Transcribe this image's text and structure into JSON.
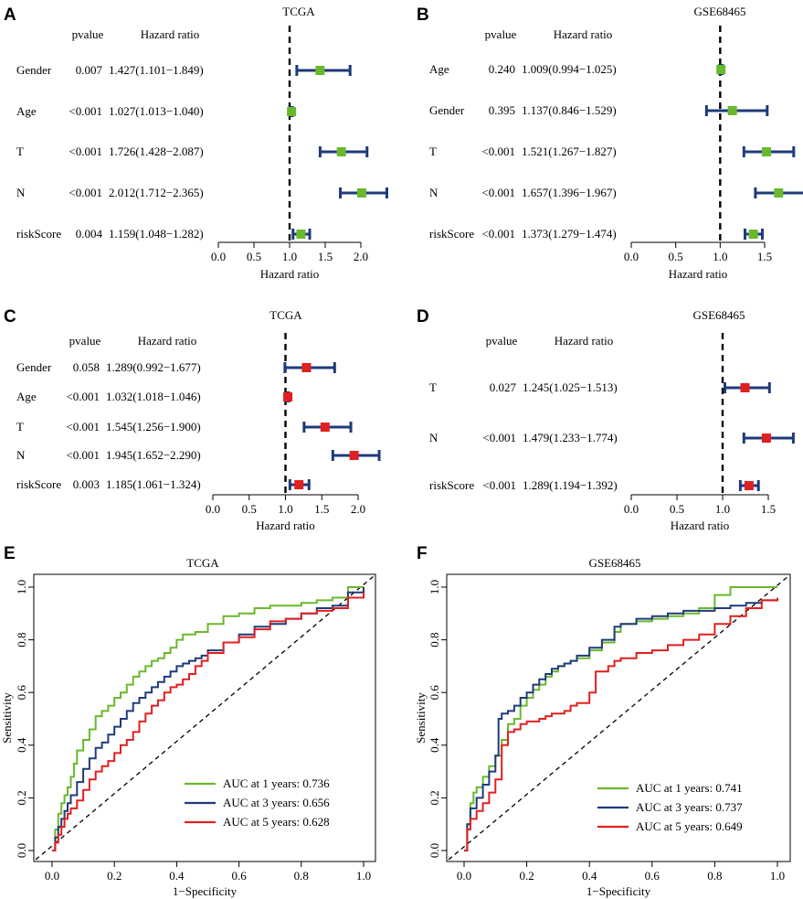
{
  "chart_data": [
    {
      "panel": "A",
      "type": "forest",
      "title": "TCGA",
      "col_pvalue": "pvalue",
      "col_hr": "Hazard ratio",
      "xlabel": "Hazard ratio",
      "xlim": [
        0.0,
        2.0
      ],
      "xticks": [
        "0.0",
        "0.5",
        "1.0",
        "1.5",
        "2.0"
      ],
      "ref_line": 1.0,
      "marker_color": "#6ab82e",
      "ci_color": "#1f3a7a",
      "rows": [
        {
          "label": "Gender",
          "pvalue": "0.007",
          "hr_text": "1.427(1.101−1.849)",
          "hr": 1.427,
          "lo": 1.101,
          "hi": 1.849
        },
        {
          "label": "Age",
          "pvalue": "<0.001",
          "hr_text": "1.027(1.013−1.040)",
          "hr": 1.027,
          "lo": 1.013,
          "hi": 1.04
        },
        {
          "label": "T",
          "pvalue": "<0.001",
          "hr_text": "1.726(1.428−2.087)",
          "hr": 1.726,
          "lo": 1.428,
          "hi": 2.087
        },
        {
          "label": "N",
          "pvalue": "<0.001",
          "hr_text": "2.012(1.712−2.365)",
          "hr": 2.012,
          "lo": 1.712,
          "hi": 2.365
        },
        {
          "label": "riskScore",
          "pvalue": "0.004",
          "hr_text": "1.159(1.048−1.282)",
          "hr": 1.159,
          "lo": 1.048,
          "hi": 1.282
        }
      ]
    },
    {
      "panel": "B",
      "type": "forest",
      "title": "GSE68465",
      "col_pvalue": "pvalue",
      "col_hr": "Hazard ratio",
      "xlabel": "Hazard ratio",
      "xlim": [
        0.0,
        1.5
      ],
      "xticks": [
        "0.0",
        "0.5",
        "1.0",
        "1.5"
      ],
      "ref_line": 1.0,
      "marker_color": "#6ab82e",
      "ci_color": "#1f3a7a",
      "rows": [
        {
          "label": "Age",
          "pvalue": "0.240",
          "hr_text": "1.009(0.994−1.025)",
          "hr": 1.009,
          "lo": 0.994,
          "hi": 1.025
        },
        {
          "label": "Gender",
          "pvalue": "0.395",
          "hr_text": "1.137(0.846−1.529)",
          "hr": 1.137,
          "lo": 0.846,
          "hi": 1.529
        },
        {
          "label": "T",
          "pvalue": "<0.001",
          "hr_text": "1.521(1.267−1.827)",
          "hr": 1.521,
          "lo": 1.267,
          "hi": 1.827
        },
        {
          "label": "N",
          "pvalue": "<0.001",
          "hr_text": "1.657(1.396−1.967)",
          "hr": 1.657,
          "lo": 1.396,
          "hi": 1.967
        },
        {
          "label": "riskScore",
          "pvalue": "<0.001",
          "hr_text": "1.373(1.279−1.474)",
          "hr": 1.373,
          "lo": 1.279,
          "hi": 1.474
        }
      ]
    },
    {
      "panel": "C",
      "type": "forest",
      "title": "TCGA",
      "col_pvalue": "pvalue",
      "col_hr": "Hazard ratio",
      "xlabel": "Hazard ratio",
      "xlim": [
        0.0,
        2.0
      ],
      "xticks": [
        "0.0",
        "0.5",
        "1.0",
        "1.5",
        "2.0"
      ],
      "ref_line": 1.0,
      "marker_color": "#e02020",
      "ci_color": "#1f3a7a",
      "rows": [
        {
          "label": "Gender",
          "pvalue": "0.058",
          "hr_text": "1.289(0.992−1.677)",
          "hr": 1.289,
          "lo": 0.992,
          "hi": 1.677
        },
        {
          "label": "Age",
          "pvalue": "<0.001",
          "hr_text": "1.032(1.018−1.046)",
          "hr": 1.032,
          "lo": 1.018,
          "hi": 1.046
        },
        {
          "label": "T",
          "pvalue": "<0.001",
          "hr_text": "1.545(1.256−1.900)",
          "hr": 1.545,
          "lo": 1.256,
          "hi": 1.9
        },
        {
          "label": "N",
          "pvalue": "<0.001",
          "hr_text": "1.945(1.652−2.290)",
          "hr": 1.945,
          "lo": 1.652,
          "hi": 2.29
        },
        {
          "label": "riskScore",
          "pvalue": "0.003",
          "hr_text": "1.185(1.061−1.324)",
          "hr": 1.185,
          "lo": 1.061,
          "hi": 1.324
        }
      ]
    },
    {
      "panel": "D",
      "type": "forest",
      "title": "GSE68465",
      "col_pvalue": "pvalue",
      "col_hr": "Hazard ratio",
      "xlabel": "Hazard ratio",
      "xlim": [
        0.0,
        1.5
      ],
      "xticks": [
        "0.0",
        "0.5",
        "1.0",
        "1.5"
      ],
      "ref_line": 1.0,
      "marker_color": "#e02020",
      "ci_color": "#1f3a7a",
      "rows": [
        {
          "label": "T",
          "pvalue": "0.027",
          "hr_text": "1.245(1.025−1.513)",
          "hr": 1.245,
          "lo": 1.025,
          "hi": 1.513
        },
        {
          "label": "N",
          "pvalue": "<0.001",
          "hr_text": "1.479(1.233−1.774)",
          "hr": 1.479,
          "lo": 1.233,
          "hi": 1.774
        },
        {
          "label": "riskScore",
          "pvalue": "<0.001",
          "hr_text": "1.289(1.194−1.392)",
          "hr": 1.289,
          "lo": 1.194,
          "hi": 1.392
        }
      ]
    },
    {
      "panel": "E",
      "type": "line",
      "title": "TCGA",
      "xlabel": "1−Specificity",
      "ylabel": "Sensitivity",
      "xlim": [
        0,
        1
      ],
      "ylim": [
        0,
        1
      ],
      "xticks": [
        "0.0",
        "0.2",
        "0.4",
        "0.6",
        "0.8",
        "1.0"
      ],
      "yticks": [
        "0.0",
        "0.2",
        "0.4",
        "0.6",
        "0.8",
        "1.0"
      ],
      "legend_position": "bottom-right",
      "series": [
        {
          "name": "AUC at 1 years: 0.736",
          "color": "#6ab82e",
          "x": [
            0,
            0.01,
            0.02,
            0.03,
            0.04,
            0.05,
            0.06,
            0.07,
            0.08,
            0.1,
            0.12,
            0.14,
            0.16,
            0.18,
            0.2,
            0.22,
            0.24,
            0.26,
            0.28,
            0.3,
            0.32,
            0.34,
            0.36,
            0.38,
            0.4,
            0.42,
            0.44,
            0.46,
            0.48,
            0.5,
            0.55,
            0.6,
            0.65,
            0.7,
            0.75,
            0.8,
            0.85,
            0.9,
            0.95,
            1.0
          ],
          "y": [
            0,
            0.08,
            0.14,
            0.18,
            0.21,
            0.24,
            0.28,
            0.33,
            0.38,
            0.42,
            0.46,
            0.51,
            0.53,
            0.55,
            0.58,
            0.6,
            0.63,
            0.66,
            0.68,
            0.7,
            0.72,
            0.73,
            0.75,
            0.77,
            0.8,
            0.82,
            0.82,
            0.83,
            0.83,
            0.86,
            0.89,
            0.9,
            0.92,
            0.93,
            0.93,
            0.94,
            0.95,
            0.96,
            1.0,
            1.0
          ]
        },
        {
          "name": "AUC at 3 years: 0.656",
          "color": "#1f3a7a",
          "x": [
            0,
            0.01,
            0.02,
            0.03,
            0.04,
            0.05,
            0.06,
            0.08,
            0.1,
            0.12,
            0.14,
            0.16,
            0.18,
            0.2,
            0.22,
            0.24,
            0.26,
            0.28,
            0.3,
            0.32,
            0.34,
            0.36,
            0.38,
            0.4,
            0.42,
            0.44,
            0.46,
            0.48,
            0.5,
            0.55,
            0.6,
            0.65,
            0.7,
            0.75,
            0.8,
            0.85,
            0.9,
            0.95,
            1.0
          ],
          "y": [
            0,
            0.05,
            0.09,
            0.12,
            0.15,
            0.18,
            0.21,
            0.26,
            0.31,
            0.35,
            0.39,
            0.41,
            0.44,
            0.47,
            0.5,
            0.53,
            0.56,
            0.58,
            0.6,
            0.62,
            0.64,
            0.66,
            0.68,
            0.7,
            0.71,
            0.72,
            0.73,
            0.74,
            0.76,
            0.79,
            0.82,
            0.85,
            0.86,
            0.88,
            0.9,
            0.92,
            0.93,
            0.98,
            1.0
          ]
        },
        {
          "name": "AUC at 5 years: 0.628",
          "color": "#e02020",
          "x": [
            0,
            0.01,
            0.02,
            0.03,
            0.04,
            0.05,
            0.06,
            0.08,
            0.1,
            0.12,
            0.14,
            0.16,
            0.18,
            0.2,
            0.22,
            0.24,
            0.26,
            0.28,
            0.3,
            0.32,
            0.34,
            0.36,
            0.38,
            0.4,
            0.42,
            0.44,
            0.46,
            0.48,
            0.5,
            0.55,
            0.6,
            0.65,
            0.7,
            0.75,
            0.8,
            0.85,
            0.9,
            0.95,
            1.0
          ],
          "y": [
            0,
            0.03,
            0.06,
            0.09,
            0.12,
            0.14,
            0.16,
            0.19,
            0.23,
            0.27,
            0.3,
            0.32,
            0.34,
            0.37,
            0.4,
            0.42,
            0.45,
            0.49,
            0.52,
            0.55,
            0.57,
            0.6,
            0.62,
            0.63,
            0.65,
            0.67,
            0.7,
            0.72,
            0.75,
            0.79,
            0.81,
            0.84,
            0.87,
            0.88,
            0.9,
            0.91,
            0.92,
            0.96,
            0.98
          ]
        }
      ]
    },
    {
      "panel": "F",
      "type": "line",
      "title": "GSE68465",
      "xlabel": "1−Specificity",
      "ylabel": "Sensitivity",
      "xlim": [
        0,
        1
      ],
      "ylim": [
        0,
        1
      ],
      "xticks": [
        "0.0",
        "0.2",
        "0.4",
        "0.6",
        "0.8",
        "1.0"
      ],
      "yticks": [
        "0.0",
        "0.2",
        "0.4",
        "0.6",
        "0.8",
        "1.0"
      ],
      "legend_position": "bottom-right",
      "series": [
        {
          "name": "AUC at 1 years: 0.741",
          "color": "#6ab82e",
          "x": [
            0,
            0.01,
            0.02,
            0.03,
            0.04,
            0.06,
            0.08,
            0.1,
            0.12,
            0.14,
            0.16,
            0.18,
            0.2,
            0.22,
            0.24,
            0.26,
            0.28,
            0.3,
            0.32,
            0.34,
            0.36,
            0.4,
            0.44,
            0.48,
            0.5,
            0.55,
            0.6,
            0.65,
            0.7,
            0.75,
            0.8,
            0.85,
            0.9,
            0.95,
            1.0
          ],
          "y": [
            0,
            0.1,
            0.18,
            0.22,
            0.24,
            0.28,
            0.32,
            0.36,
            0.42,
            0.48,
            0.5,
            0.55,
            0.58,
            0.61,
            0.63,
            0.66,
            0.68,
            0.7,
            0.71,
            0.72,
            0.73,
            0.76,
            0.79,
            0.83,
            0.86,
            0.87,
            0.88,
            0.89,
            0.9,
            0.92,
            0.97,
            1.0,
            1.0,
            1.0,
            1.0
          ]
        },
        {
          "name": "AUC at 3 years: 0.737",
          "color": "#1f3a7a",
          "x": [
            0,
            0.01,
            0.02,
            0.04,
            0.06,
            0.08,
            0.1,
            0.11,
            0.12,
            0.14,
            0.16,
            0.18,
            0.2,
            0.22,
            0.24,
            0.26,
            0.28,
            0.3,
            0.32,
            0.34,
            0.36,
            0.4,
            0.44,
            0.48,
            0.5,
            0.55,
            0.6,
            0.65,
            0.7,
            0.75,
            0.8,
            0.85,
            0.9,
            0.95,
            1.0
          ],
          "y": [
            0,
            0.1,
            0.16,
            0.2,
            0.25,
            0.3,
            0.36,
            0.5,
            0.52,
            0.53,
            0.55,
            0.58,
            0.6,
            0.63,
            0.65,
            0.67,
            0.69,
            0.7,
            0.71,
            0.72,
            0.74,
            0.77,
            0.8,
            0.85,
            0.86,
            0.88,
            0.89,
            0.9,
            0.91,
            0.91,
            0.92,
            0.93,
            0.94,
            0.95,
            0.96
          ]
        },
        {
          "name": "AUC at 5 years: 0.649",
          "color": "#e02020",
          "x": [
            0,
            0.01,
            0.02,
            0.04,
            0.06,
            0.08,
            0.1,
            0.12,
            0.14,
            0.16,
            0.18,
            0.2,
            0.22,
            0.24,
            0.26,
            0.28,
            0.3,
            0.32,
            0.34,
            0.36,
            0.38,
            0.4,
            0.42,
            0.44,
            0.46,
            0.48,
            0.5,
            0.55,
            0.6,
            0.65,
            0.7,
            0.75,
            0.8,
            0.85,
            0.9,
            0.95,
            1.0
          ],
          "y": [
            0,
            0.08,
            0.12,
            0.15,
            0.18,
            0.22,
            0.27,
            0.4,
            0.45,
            0.46,
            0.48,
            0.49,
            0.49,
            0.5,
            0.51,
            0.52,
            0.52,
            0.53,
            0.55,
            0.56,
            0.56,
            0.6,
            0.68,
            0.68,
            0.7,
            0.72,
            0.73,
            0.75,
            0.76,
            0.78,
            0.8,
            0.82,
            0.86,
            0.89,
            0.92,
            0.95,
            0.96
          ]
        }
      ]
    }
  ]
}
